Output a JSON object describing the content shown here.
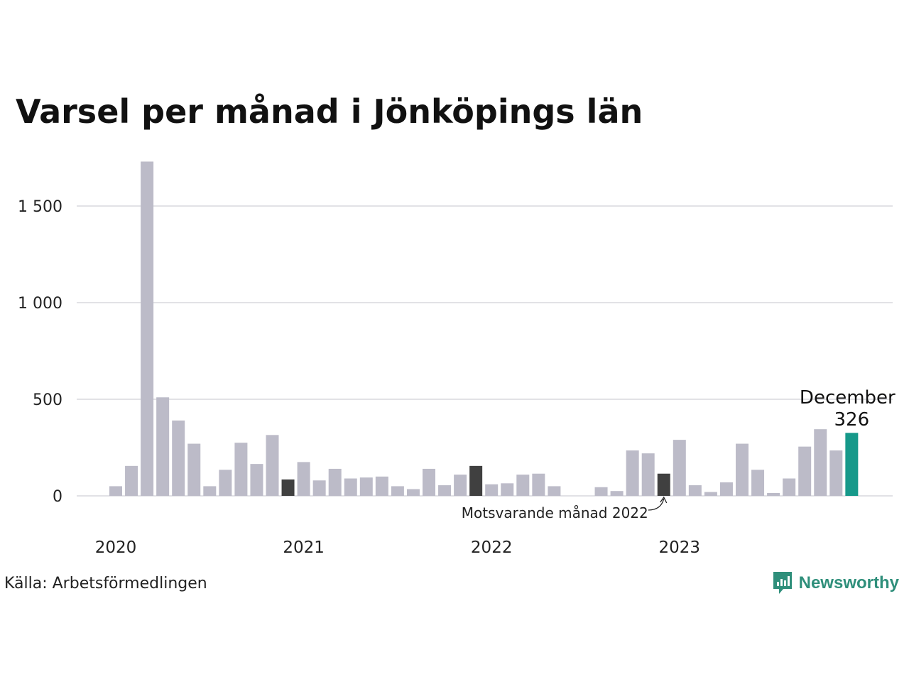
{
  "title": "Varsel per månad i Jönköpings län",
  "source": "Källa: Arbetsförmedlingen",
  "brand": {
    "name": "Newsworthy",
    "icon": "newsworthy-logo-icon",
    "color": "#2f8f7b"
  },
  "colors": {
    "default": "#bcbbc8",
    "comparison": "#404040",
    "latest": "#16998a",
    "grid": "#e2e2e6"
  },
  "chart_data": {
    "type": "bar",
    "title": "Varsel per månad i Jönköpings län",
    "xlabel": "",
    "ylabel": "",
    "ylim": [
      0,
      1800
    ],
    "yticks": [
      0,
      500,
      1000,
      1500
    ],
    "ytick_labels": [
      "0",
      "500",
      "1 000",
      "1 500"
    ],
    "xtick_labels": [
      {
        "label": "2020",
        "index": 0
      },
      {
        "label": "2021",
        "index": 12
      },
      {
        "label": "2022",
        "index": 24
      },
      {
        "label": "2023",
        "index": 36
      }
    ],
    "grid": true,
    "legend": "none",
    "categories": [
      "2020-01",
      "2020-02",
      "2020-03",
      "2020-04",
      "2020-05",
      "2020-06",
      "2020-07",
      "2020-08",
      "2020-09",
      "2020-10",
      "2020-11",
      "2020-12",
      "2021-01",
      "2021-02",
      "2021-03",
      "2021-04",
      "2021-05",
      "2021-06",
      "2021-07",
      "2021-08",
      "2021-09",
      "2021-10",
      "2021-11",
      "2021-12",
      "2022-01",
      "2022-02",
      "2022-03",
      "2022-04",
      "2022-05",
      "2022-06",
      "2022-07",
      "2022-08",
      "2022-09",
      "2022-10",
      "2022-11",
      "2022-12",
      "2023-01",
      "2023-02",
      "2023-03",
      "2023-04",
      "2023-05",
      "2023-06",
      "2023-07",
      "2023-08",
      "2023-09",
      "2023-10",
      "2023-11",
      "2023-12"
    ],
    "values": [
      50,
      155,
      1730,
      510,
      390,
      270,
      50,
      135,
      275,
      165,
      315,
      85,
      175,
      80,
      140,
      90,
      95,
      100,
      50,
      35,
      140,
      55,
      110,
      155,
      60,
      65,
      110,
      115,
      50,
      0,
      0,
      45,
      25,
      235,
      220,
      115,
      290,
      55,
      20,
      70,
      270,
      135,
      15,
      90,
      255,
      345,
      235,
      326
    ],
    "highlights": [
      {
        "index": 11,
        "role": "comparison"
      },
      {
        "index": 23,
        "role": "comparison"
      },
      {
        "index": 35,
        "role": "comparison"
      },
      {
        "index": 47,
        "role": "latest"
      }
    ],
    "annotations": [
      {
        "text": "Motsvarande månad 2022",
        "target_index": 35
      },
      {
        "label": "December",
        "value_text": "326",
        "target_index": 47
      }
    ]
  }
}
